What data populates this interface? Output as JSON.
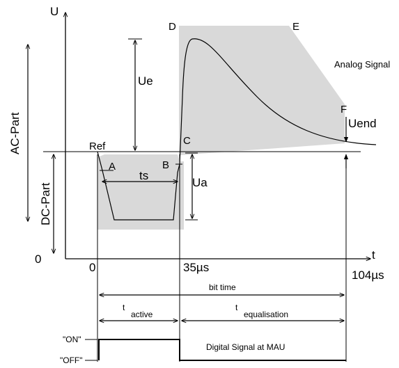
{
  "axes": {
    "y_label": "U",
    "x_label": "t",
    "origin_label": "0",
    "x_zero": "0",
    "x_35": "35µs",
    "x_104": "104µs"
  },
  "side_labels": {
    "ac_part": "AC-Part",
    "dc_part": "DC-Part"
  },
  "points": {
    "ref": "Ref",
    "a": "A",
    "b": "B",
    "c": "C",
    "d": "D",
    "e": "E",
    "f": "F"
  },
  "dims": {
    "ue": "Ue",
    "ua": "Ua",
    "ts": "ts",
    "uend": "Uend"
  },
  "analog_signal": "Analog Signal",
  "timing": {
    "bit_time": "bit time",
    "t_active_t": "t",
    "t_active_sub": "active",
    "t_equal_t": "t",
    "t_equal_sub": "equalisation"
  },
  "digital": {
    "on": "\"ON\"",
    "off": "\"OFF\"",
    "caption": "Digital Signal at MAU"
  },
  "colors": {
    "mask": "#d9d9d9",
    "line": "#000000"
  }
}
